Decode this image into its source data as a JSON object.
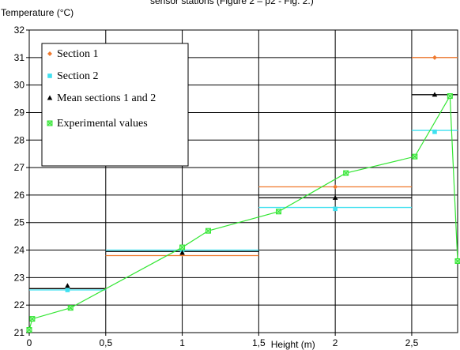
{
  "caption_fragment": "sensor stations (Figure 2 – p2 - Fig. 2.)",
  "chart_data": {
    "type": "line",
    "xlabel": "Height (m)",
    "ylabel": "Temperature (°C)",
    "xlim": [
      0,
      2.8
    ],
    "ylim": [
      21,
      32
    ],
    "x_ticks": [
      "0",
      "0,5",
      "1",
      "1,5",
      "2",
      "2,5"
    ],
    "x_tick_values": [
      0,
      0.5,
      1,
      1.5,
      2,
      2.5
    ],
    "y_ticks": [
      "21",
      "22",
      "23",
      "24",
      "25",
      "26",
      "27",
      "28",
      "29",
      "30",
      "31",
      "32"
    ],
    "y_tick_values": [
      21,
      22,
      23,
      24,
      25,
      26,
      27,
      28,
      29,
      30,
      31,
      32
    ],
    "grid": true,
    "legend_position": "top-left",
    "series": [
      {
        "name": "Section 1",
        "color": "#f07a2e",
        "marker": "diamond",
        "points": [
          [
            0.25,
            22.6
          ],
          [
            1.0,
            23.85
          ],
          [
            2.0,
            26.3
          ],
          [
            2.65,
            31.0
          ]
        ],
        "segments": [
          [
            0,
            0.5,
            22.6
          ],
          [
            0.5,
            1.5,
            23.8
          ],
          [
            1.5,
            2.5,
            26.3
          ],
          [
            2.5,
            2.8,
            31.0
          ]
        ]
      },
      {
        "name": "Section 2",
        "color": "#3fe0f0",
        "marker": "square",
        "points": [
          [
            0.25,
            22.55
          ],
          [
            1.0,
            24.0
          ],
          [
            2.0,
            25.5
          ],
          [
            2.65,
            28.3
          ]
        ],
        "segments": [
          [
            0,
            0.5,
            22.55
          ],
          [
            0.5,
            1.5,
            24.0
          ],
          [
            1.5,
            2.5,
            25.55
          ],
          [
            2.5,
            2.8,
            28.35
          ]
        ]
      },
      {
        "name": "Mean sections 1 and 2",
        "color": "#000000",
        "marker": "triangle",
        "points": [
          [
            0.25,
            22.7
          ],
          [
            1.0,
            23.9
          ],
          [
            2.0,
            25.9
          ],
          [
            2.65,
            29.65
          ]
        ],
        "segments": [
          [
            0,
            0.5,
            22.6
          ],
          [
            0.5,
            1.5,
            23.95
          ],
          [
            1.5,
            2.5,
            25.9
          ],
          [
            2.5,
            2.8,
            29.65
          ]
        ]
      },
      {
        "name": "Experimental values",
        "color": "#33e633",
        "marker": "square-x",
        "points": [
          [
            0,
            21.1
          ],
          [
            0.02,
            21.5
          ],
          [
            0.27,
            21.9
          ],
          [
            1.0,
            24.1
          ],
          [
            1.17,
            24.7
          ],
          [
            1.63,
            25.4
          ],
          [
            2.07,
            26.8
          ],
          [
            2.52,
            27.4
          ],
          [
            2.75,
            29.6
          ],
          [
            2.8,
            23.6
          ]
        ]
      }
    ]
  }
}
